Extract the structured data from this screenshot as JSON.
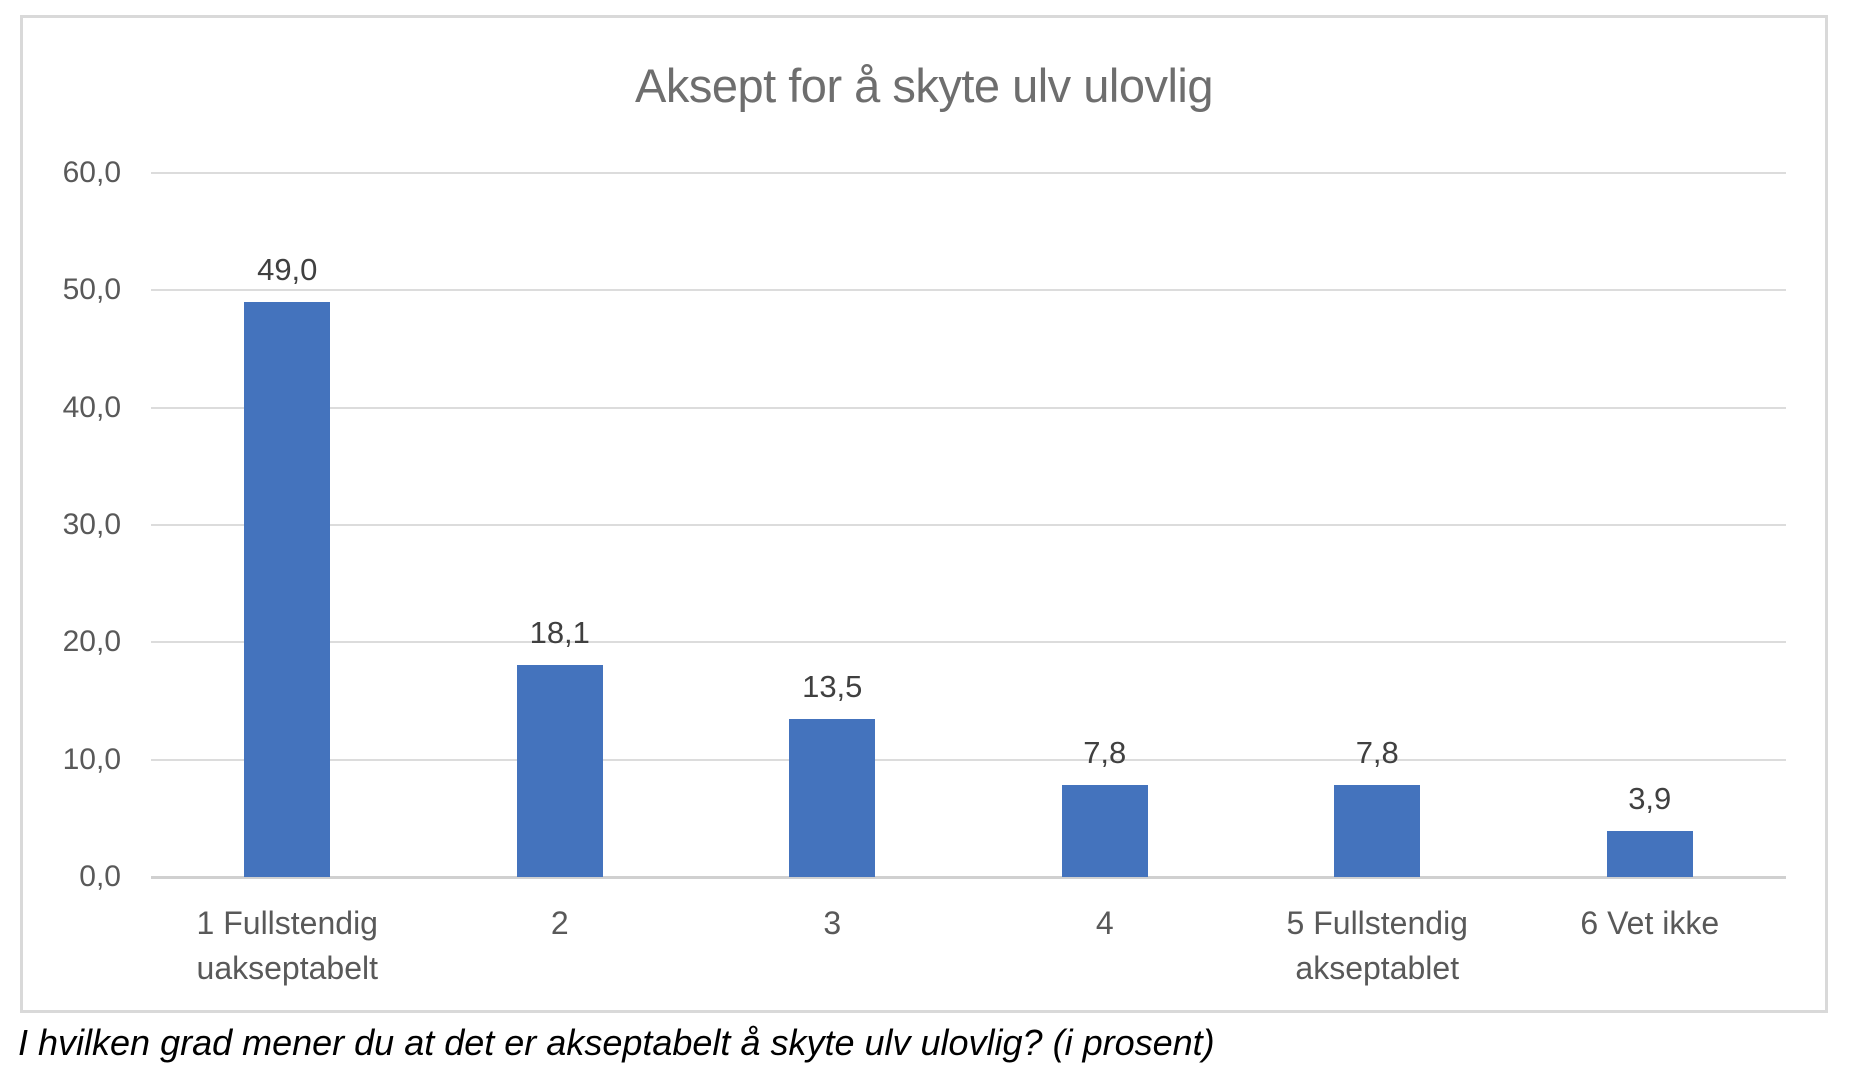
{
  "chart_data": {
    "type": "bar",
    "title": "Aksept for å skyte ulv ulovlig",
    "categories": [
      "1 Fullstendig uakseptabelt",
      "2",
      "3",
      "4",
      "5 Fullstendig akseptablet",
      "6 Vet ikke"
    ],
    "values": [
      49.0,
      18.1,
      13.5,
      7.8,
      7.8,
      3.9
    ],
    "value_labels": [
      "49,0",
      "18,1",
      "13,5",
      "7,8",
      "7,8",
      "3,9"
    ],
    "y_ticks": [
      {
        "value": 60,
        "label": "60,0"
      },
      {
        "value": 50,
        "label": "50,0"
      },
      {
        "value": 40,
        "label": "40,0"
      },
      {
        "value": 30,
        "label": "30,0"
      },
      {
        "value": 20,
        "label": "20,0"
      },
      {
        "value": 10,
        "label": "10,0"
      },
      {
        "value": 0,
        "label": "0,0"
      }
    ],
    "ylim": [
      0,
      60
    ],
    "grid": true,
    "legend": false,
    "xlabel": "",
    "ylabel": "",
    "bar_color": "#4473bd",
    "caption": "I hvilken grad mener du at det er akseptabelt å skyte ulv ulovlig? (i prosent)"
  }
}
